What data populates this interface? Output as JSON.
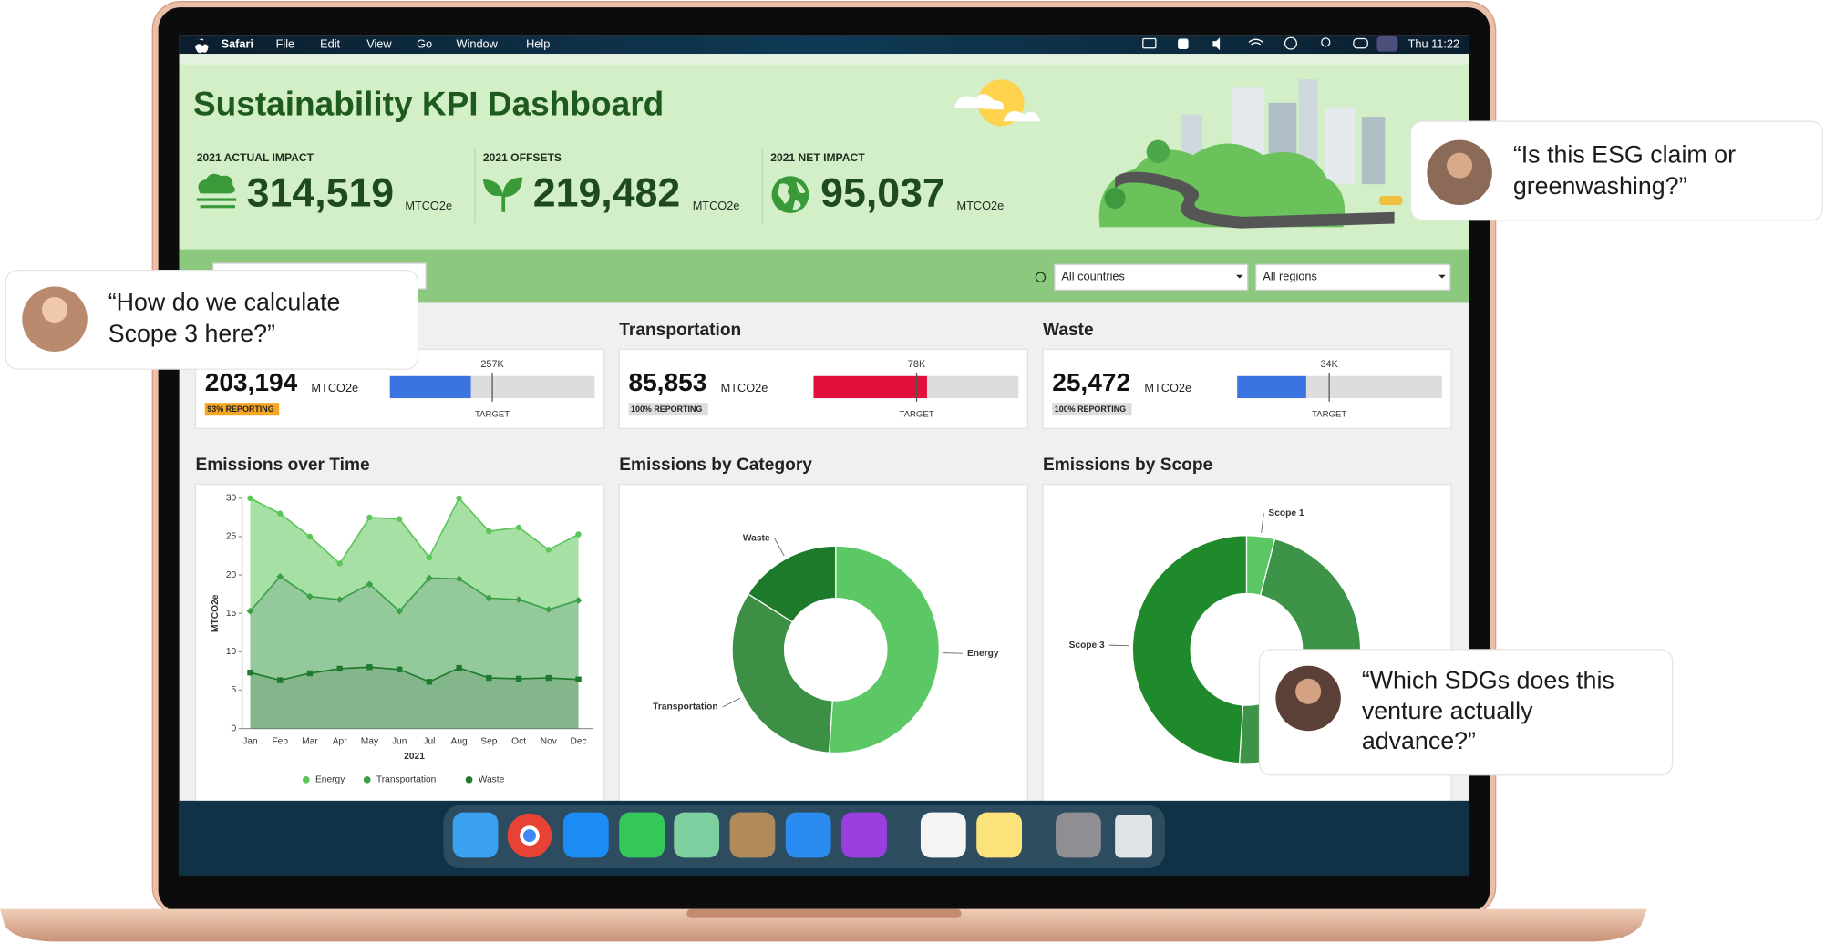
{
  "menu_bar": {
    "app": "Safari",
    "items": [
      "File",
      "Edit",
      "View",
      "Go",
      "Window",
      "Help"
    ],
    "clock": "Thu 11:22"
  },
  "header": {
    "title": "Sustainability KPI Dashboard",
    "kpis": [
      {
        "label": "2021 ACTUAL IMPACT",
        "value": "314,519",
        "unit": "MTCO2e"
      },
      {
        "label": "2021 OFFSETS",
        "value": "219,482",
        "unit": "MTCO2e"
      },
      {
        "label": "2021 NET IMPACT",
        "value": "95,037",
        "unit": "MTCO2e"
      }
    ]
  },
  "filters": [
    "All countries",
    "All regions"
  ],
  "cards": [
    {
      "value": 203194,
      "value_label": "203,194",
      "unit": "MTCO2e",
      "badge": "93% REPORTING",
      "target": 257000,
      "target_label": "257K",
      "target_text": "TARGET",
      "xlim": [
        0,
        514000
      ],
      "color": "#3b74e0",
      "badge_color": "#f5a623"
    },
    {
      "name": "Transportation",
      "value": 85853,
      "value_label": "85,853",
      "unit": "MTCO2e",
      "badge": "100% REPORTING",
      "target": 78000,
      "target_label": "78K",
      "target_text": "TARGET",
      "xlim": [
        0,
        155000
      ],
      "color": "#e0103a",
      "badge_color": "#dddddd"
    },
    {
      "name": "Waste",
      "value": 25472,
      "value_label": "25,472",
      "unit": "MTCO2e",
      "badge": "100% REPORTING",
      "target": 34000,
      "target_label": "34K",
      "target_text": "TARGET",
      "xlim": [
        0,
        75700
      ],
      "color": "#3b74e0",
      "badge_color": "#dddddd"
    }
  ],
  "chart_data": [
    {
      "type": "stacked_area",
      "title": "Emissions over Time",
      "categories": [
        "Jan",
        "Feb",
        "Mar",
        "Apr",
        "May",
        "Jun",
        "Jul",
        "Aug",
        "Sep",
        "Oct",
        "Nov",
        "Dec"
      ],
      "series": [
        {
          "name": "Energy",
          "color": "#5cc65a",
          "values": [
            14.7,
            8.2,
            7.8,
            4.7,
            8.7,
            12.0,
            2.7,
            10.5,
            8.7,
            9.4,
            7.8,
            8.6
          ]
        },
        {
          "name": "Transportation",
          "color": "#3d9e48",
          "values": [
            8.0,
            13.5,
            10.0,
            9.0,
            10.8,
            7.6,
            13.5,
            11.6,
            10.4,
            10.3,
            8.9,
            10.3
          ]
        },
        {
          "name": "Waste",
          "color": "#1e7a2c",
          "values": [
            7.3,
            6.3,
            7.2,
            7.8,
            8.0,
            7.7,
            6.1,
            7.9,
            6.6,
            6.5,
            6.6,
            6.4
          ]
        }
      ],
      "ylim": [
        0,
        30
      ],
      "yticks": [
        0,
        5,
        10,
        15,
        20,
        25,
        30
      ],
      "x_label": "2021",
      "y_label": "MTCO2e",
      "legend": "bottom"
    },
    {
      "type": "donut",
      "title": "Emissions by Category",
      "categories": [
        "Energy",
        "Transportation",
        "Waste"
      ],
      "values": [
        51,
        33,
        16
      ],
      "colors": [
        "#5bc865",
        "#3d8f45",
        "#1c7a2a"
      ]
    },
    {
      "type": "donut",
      "title": "Emissions by Scope",
      "categories": [
        "Scope 1",
        null,
        "Scope 3"
      ],
      "values": [
        4,
        47,
        49
      ],
      "colors": [
        "#5bc865",
        "#3d9448",
        "#1e8a2c"
      ]
    }
  ],
  "quotes": [
    {
      "lines": [
        "“How do we calculate",
        "Scope 3 here?”"
      ]
    },
    {
      "lines": [
        "“Is this ESG claim or",
        "greenwashing?”"
      ]
    },
    {
      "lines": [
        "“Which SDGs does this",
        "venture actually",
        "advance?”"
      ]
    }
  ]
}
